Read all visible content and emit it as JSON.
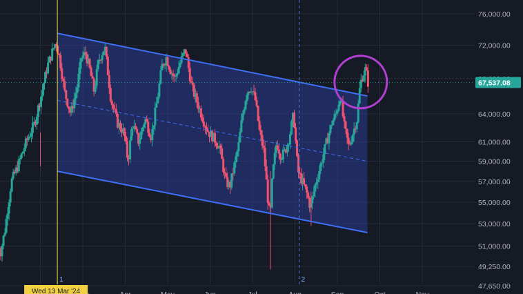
{
  "chart_data": {
    "type": "candlestick",
    "y_axis": {
      "scale": "log",
      "position": "right",
      "ticks": [
        {
          "value": 47650,
          "label": "47,650.00"
        },
        {
          "value": 49250,
          "label": "49,250.00"
        },
        {
          "value": 51000,
          "label": "51,000.00"
        },
        {
          "value": 53000,
          "label": "53,000.00"
        },
        {
          "value": 55000,
          "label": "55,000.00"
        },
        {
          "value": 57000,
          "label": "57,000.00"
        },
        {
          "value": 59000,
          "label": "59,000.00"
        },
        {
          "value": 61000,
          "label": "61,000.00"
        },
        {
          "value": 64000,
          "label": "64,000.00"
        },
        {
          "value": 68000,
          "label": "68,000.00"
        },
        {
          "value": 72000,
          "label": "72,000.00"
        },
        {
          "value": 76000,
          "label": "76,000.00"
        }
      ]
    },
    "x_axis": {
      "labels": [
        "Mar",
        "Apr",
        "May",
        "Jun",
        "Jul",
        "Aug",
        "Sep",
        "Oct",
        "Nov"
      ],
      "unit": "month"
    },
    "last_price": {
      "value": 67537.08,
      "label": "67,537.08",
      "color": "#26a69a"
    },
    "crosshair_date_label": "Wed 13 Mar '24",
    "markers": [
      {
        "label": "1",
        "month": 2.4,
        "color": "#f0e040"
      },
      {
        "label": "2",
        "month": 8.1,
        "color": "#5a7fe0"
      }
    ],
    "channel": {
      "upper": [
        {
          "month": 2.4,
          "value": 73500
        },
        {
          "month": 10.0,
          "value": 66000
        }
      ],
      "middle": [
        {
          "month": 2.4,
          "value": 65500
        },
        {
          "month": 10.0,
          "value": 59000
        }
      ],
      "lower": [
        {
          "month": 2.4,
          "value": 58000
        },
        {
          "month": 10.0,
          "value": 52200
        }
      ],
      "line_color": "#3f6ff5",
      "fill_color": "#2a3d8f"
    },
    "highlight_circle": {
      "month": 9.55,
      "value": 67600,
      "color": "#b23fd0"
    },
    "colors": {
      "up": "#26a69a",
      "down": "#ef5370",
      "background": "#161a25",
      "grid": "#262b38"
    },
    "series": [
      {
        "name": "",
        "ohlc": []
      }
    ],
    "price_path": [
      [
        1.0,
        51000
      ],
      [
        1.1,
        50500
      ],
      [
        1.2,
        52500
      ],
      [
        1.35,
        57000
      ],
      [
        1.5,
        58500
      ],
      [
        1.7,
        61000
      ],
      [
        1.9,
        63000
      ],
      [
        2.05,
        66000
      ],
      [
        2.2,
        69500
      ],
      [
        2.4,
        72500
      ],
      [
        2.5,
        70000
      ],
      [
        2.6,
        66500
      ],
      [
        2.75,
        64000
      ],
      [
        2.9,
        67000
      ],
      [
        3.0,
        70500
      ],
      [
        3.1,
        71000
      ],
      [
        3.2,
        69000
      ],
      [
        3.3,
        66500
      ],
      [
        3.4,
        70000
      ],
      [
        3.55,
        71800
      ],
      [
        3.7,
        65500
      ],
      [
        3.85,
        63000
      ],
      [
        4.0,
        62000
      ],
      [
        4.1,
        59000
      ],
      [
        4.2,
        63000
      ],
      [
        4.35,
        61000
      ],
      [
        4.5,
        63500
      ],
      [
        4.65,
        61500
      ],
      [
        4.8,
        66000
      ],
      [
        4.9,
        69500
      ],
      [
        5.0,
        70500
      ],
      [
        5.1,
        69000
      ],
      [
        5.2,
        68000
      ],
      [
        5.3,
        69500
      ],
      [
        5.45,
        71500
      ],
      [
        5.6,
        67000
      ],
      [
        5.75,
        65000
      ],
      [
        5.9,
        63000
      ],
      [
        6.0,
        62000
      ],
      [
        6.1,
        61500
      ],
      [
        6.25,
        60500
      ],
      [
        6.4,
        57000
      ],
      [
        6.5,
        56500
      ],
      [
        6.6,
        58500
      ],
      [
        6.7,
        60500
      ],
      [
        6.8,
        64000
      ],
      [
        6.9,
        66500
      ],
      [
        7.0,
        67000
      ],
      [
        7.1,
        65500
      ],
      [
        7.2,
        62000
      ],
      [
        7.3,
        60000
      ],
      [
        7.4,
        55000
      ],
      [
        7.45,
        53500
      ],
      [
        7.5,
        57500
      ],
      [
        7.6,
        61000
      ],
      [
        7.7,
        59500
      ],
      [
        7.8,
        60000
      ],
      [
        7.9,
        61500
      ],
      [
        8.0,
        64000
      ],
      [
        8.1,
        58000
      ],
      [
        8.2,
        57000
      ],
      [
        8.3,
        56000
      ],
      [
        8.4,
        54500
      ],
      [
        8.5,
        56500
      ],
      [
        8.6,
        58000
      ],
      [
        8.75,
        60500
      ],
      [
        8.9,
        63000
      ],
      [
        9.0,
        64000
      ],
      [
        9.1,
        66000
      ],
      [
        9.2,
        62500
      ],
      [
        9.3,
        60500
      ],
      [
        9.4,
        62000
      ],
      [
        9.5,
        63500
      ],
      [
        9.55,
        66500
      ],
      [
        9.6,
        68000
      ],
      [
        9.7,
        69200
      ],
      [
        9.75,
        67537
      ]
    ]
  }
}
